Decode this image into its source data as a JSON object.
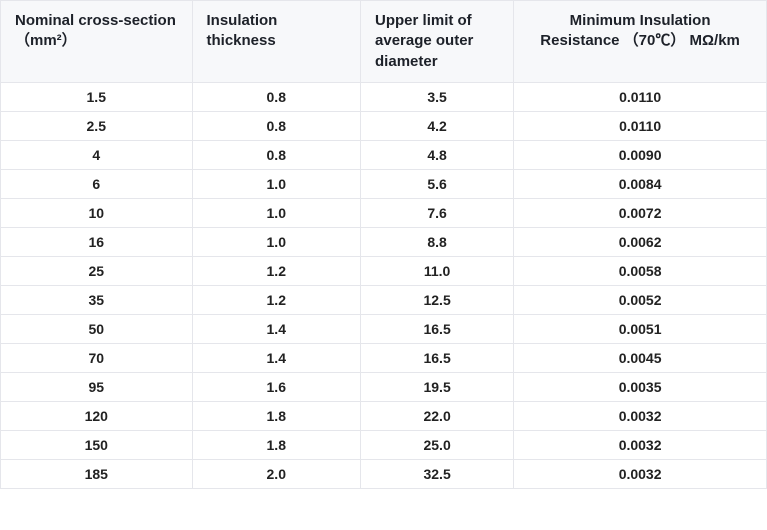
{
  "table": {
    "columns": [
      "Nominal cross-section （mm²）",
      "Insulation thickness",
      "Upper limit of average outer diameter",
      "Minimum Insulation Resistance （70℃） MΩ/km"
    ],
    "rows": [
      [
        "1.5",
        "0.8",
        "3.5",
        "0.0110"
      ],
      [
        "2.5",
        "0.8",
        "4.2",
        "0.0110"
      ],
      [
        "4",
        "0.8",
        "4.8",
        "0.0090"
      ],
      [
        "6",
        "1.0",
        "5.6",
        "0.0084"
      ],
      [
        "10",
        "1.0",
        "7.6",
        "0.0072"
      ],
      [
        "16",
        "1.0",
        "8.8",
        "0.0062"
      ],
      [
        "25",
        "1.2",
        "11.0",
        "0.0058"
      ],
      [
        "35",
        "1.2",
        "12.5",
        "0.0052"
      ],
      [
        "50",
        "1.4",
        "16.5",
        "0.0051"
      ],
      [
        "70",
        "1.4",
        "16.5",
        "0.0045"
      ],
      [
        "95",
        "1.6",
        "19.5",
        "0.0035"
      ],
      [
        "120",
        "1.8",
        "22.0",
        "0.0032"
      ],
      [
        "150",
        "1.8",
        "25.0",
        "0.0032"
      ],
      [
        "185",
        "2.0",
        "32.5",
        "0.0032"
      ]
    ],
    "header_bg": "#f7f8fa",
    "border_color": "#e5e6eb",
    "header_font_color": "#1d2129",
    "cell_font_color": "#222222",
    "header_fontsize": 15,
    "cell_fontsize": 14,
    "font_weight": 700,
    "column_widths_pct": [
      25,
      22,
      20,
      33
    ]
  }
}
